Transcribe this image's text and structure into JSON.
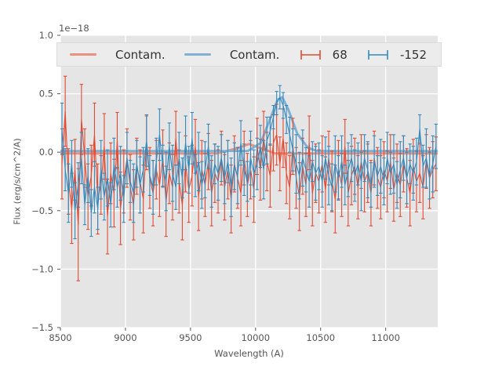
{
  "figure": {
    "offset_text": "1e−18",
    "xlabel": "Wavelength (A)",
    "ylabel": "Flux (erg/s/cm^2/A)"
  },
  "colors": {
    "figure_bg": "#FFFFFF",
    "axes_bg": "#E5E5E5",
    "grid": "#FFFFFF",
    "tick_text": "#555555",
    "legend_text": "#333333",
    "legend_bg": "#ECECEC",
    "red": "#E24A33",
    "blue": "#348ABD",
    "salmon": "#E8917F",
    "light_blue": "#7FB0D2"
  },
  "legend": {
    "items": [
      {
        "type": "line",
        "color_key": "salmon",
        "label": "Contam."
      },
      {
        "type": "line",
        "color_key": "light_blue",
        "label": "Contam."
      },
      {
        "type": "errorbar",
        "color_key": "red",
        "label": "68"
      },
      {
        "type": "errorbar",
        "color_key": "blue",
        "label": "-152"
      }
    ]
  },
  "chart_data": {
    "type": "line",
    "title": "",
    "xlabel": "Wavelength (A)",
    "ylabel": "Flux (erg/s/cm^2/A)",
    "offset_text": "1e−18",
    "xlim": [
      8500,
      11400
    ],
    "ylim": [
      -1.5,
      1.0
    ],
    "grid": true,
    "legend_position": "upper center, horizontal, 4 columns",
    "xticks": {
      "values": [
        8500,
        9000,
        9500,
        10000,
        10500,
        11000
      ],
      "labels": [
        "8500",
        "9000",
        "9500",
        "10000",
        "10500",
        "11000"
      ]
    },
    "yticks": {
      "values": [
        1.0,
        0.5,
        0.0,
        -0.5,
        -1.0,
        -1.5
      ],
      "labels": [
        "1.0",
        "0.5",
        "0.0",
        "−0.5",
        "−1.0",
        "−1.5"
      ]
    },
    "series": [
      {
        "name": "Contam.",
        "style": "thick-line",
        "color_key": "salmon",
        "x": [
          8500,
          9700,
          9850,
          9950,
          10050,
          10150,
          11400
        ],
        "y": [
          -0.01,
          -0.01,
          0.03,
          0.07,
          0.03,
          -0.01,
          -0.01
        ]
      },
      {
        "name": "Contam.",
        "style": "thick-line",
        "color_key": "light_blue",
        "x": [
          8500,
          9940,
          10040,
          10110,
          10170,
          10205,
          10250,
          10320,
          10400,
          10470,
          11400
        ],
        "y": [
          0.01,
          0.01,
          0.08,
          0.28,
          0.45,
          0.47,
          0.37,
          0.16,
          0.04,
          0.01,
          0.01
        ]
      },
      {
        "name": "68",
        "style": "errorbar",
        "color_key": "red",
        "x_start": 8512,
        "x_step": 25,
        "values": [
          -0.1,
          0.35,
          -0.25,
          -0.48,
          -0.15,
          -0.62,
          0.28,
          -0.05,
          -0.38,
          -0.2,
          0.15,
          -0.4,
          -0.28,
          0.05,
          -0.55,
          -0.18,
          -0.35,
          0.1,
          -0.48,
          -0.25,
          -0.05,
          -0.3,
          -0.45,
          -0.12,
          -0.25,
          -0.4,
          0.08,
          -0.22,
          -0.35,
          -0.15,
          -0.28,
          -0.05,
          -0.42,
          -0.18,
          -0.3,
          0.12,
          -0.25,
          -0.45,
          -0.1,
          -0.32,
          -0.2,
          0.05,
          -0.38,
          -0.15,
          -0.28,
          -0.08,
          -0.35,
          -0.18,
          -0.25,
          -0.05,
          -0.3,
          -0.15,
          -0.4,
          -0.1,
          -0.22,
          -0.35,
          -0.05,
          -0.28,
          -0.15,
          -0.32,
          0.05,
          -0.15,
          0.12,
          -0.08,
          -0.2,
          0.08,
          0.15,
          -0.1,
          0.12,
          -0.18,
          -0.3,
          0.05,
          -0.22,
          -0.38,
          -0.12,
          -0.28,
          0.08,
          -0.35,
          -0.18,
          -0.25,
          -0.1,
          -0.32,
          -0.05,
          -0.25,
          -0.4,
          -0.15,
          -0.28,
          0.05,
          -0.35,
          -0.2,
          -0.12,
          -0.3,
          -0.08,
          -0.25,
          -0.18,
          -0.35,
          -0.05,
          -0.22,
          -0.3,
          -0.15,
          -0.25,
          -0.08,
          -0.32,
          -0.18,
          -0.28,
          -0.1,
          -0.22,
          -0.35,
          -0.12,
          -0.25,
          -0.18,
          -0.3,
          -0.08,
          -0.22,
          -0.15,
          -0.1
        ],
        "errors": [
          0.3,
          0.3,
          0.28,
          0.3,
          0.26,
          0.48,
          0.3,
          0.25,
          0.28,
          0.26,
          0.27,
          0.3,
          0.25,
          0.28,
          0.32,
          0.26,
          0.29,
          0.24,
          0.31,
          0.27,
          0.25,
          0.28,
          0.3,
          0.24,
          0.27,
          0.29,
          0.23,
          0.26,
          0.28,
          0.25,
          0.27,
          0.24,
          0.3,
          0.26,
          0.28,
          0.23,
          0.27,
          0.3,
          0.24,
          0.28,
          0.26,
          0.23,
          0.29,
          0.25,
          0.27,
          0.24,
          0.28,
          0.25,
          0.27,
          0.23,
          0.28,
          0.25,
          0.29,
          0.24,
          0.26,
          0.28,
          0.23,
          0.27,
          0.25,
          0.28,
          0.24,
          0.26,
          0.23,
          0.25,
          0.27,
          0.24,
          0.26,
          0.23,
          0.25,
          0.26,
          0.27,
          0.24,
          0.26,
          0.29,
          0.24,
          0.27,
          0.23,
          0.28,
          0.25,
          0.27,
          0.24,
          0.28,
          0.23,
          0.26,
          0.29,
          0.25,
          0.27,
          0.23,
          0.28,
          0.25,
          0.24,
          0.27,
          0.23,
          0.26,
          0.25,
          0.28,
          0.23,
          0.26,
          0.27,
          0.24,
          0.26,
          0.23,
          0.27,
          0.25,
          0.27,
          0.24,
          0.25,
          0.28,
          0.23,
          0.26,
          0.25,
          0.27,
          0.23,
          0.26,
          0.24,
          0.23
        ]
      },
      {
        "name": "-152",
        "style": "errorbar",
        "color_key": "blue",
        "x_start": 8512,
        "x_step": 25,
        "values": [
          0.2,
          -0.15,
          -0.35,
          -0.1,
          -0.5,
          -0.28,
          -0.05,
          -0.45,
          -0.2,
          -0.52,
          -0.3,
          -0.48,
          -0.15,
          -0.38,
          -0.22,
          -0.45,
          -0.1,
          -0.3,
          -0.18,
          -0.4,
          -0.05,
          -0.25,
          -0.35,
          -0.1,
          -0.28,
          -0.15,
          0.1,
          -0.2,
          -0.3,
          -0.08,
          0.15,
          -0.12,
          -0.25,
          0.05,
          -0.18,
          -0.3,
          -0.05,
          -0.22,
          0.08,
          -0.15,
          0.12,
          -0.2,
          -0.08,
          -0.28,
          -0.15,
          0.05,
          -0.25,
          -0.1,
          -0.18,
          -0.05,
          -0.22,
          -0.08,
          -0.3,
          -0.12,
          -0.2,
          0.08,
          -0.15,
          -0.25,
          -0.05,
          -0.18,
          -0.1,
          0.05,
          -0.15,
          0.1,
          0.18,
          0.3,
          0.42,
          0.47,
          0.4,
          0.28,
          0.15,
          0.02,
          -0.1,
          -0.2,
          -0.05,
          -0.15,
          -0.25,
          -0.08,
          -0.18,
          -0.12,
          -0.25,
          -0.05,
          -0.2,
          -0.3,
          -0.1,
          -0.22,
          -0.08,
          -0.28,
          -0.15,
          -0.05,
          -0.2,
          -0.1,
          -0.25,
          -0.05,
          -0.15,
          -0.28,
          -0.08,
          -0.2,
          -0.12,
          -0.25,
          -0.05,
          -0.18,
          -0.1,
          -0.28,
          -0.15,
          -0.05,
          -0.22,
          -0.1,
          -0.18,
          -0.08,
          0.2,
          -0.12,
          -0.05,
          -0.2,
          -0.1,
          0.05
        ],
        "errors": [
          0.22,
          0.18,
          0.25,
          0.2,
          0.24,
          0.19,
          0.22,
          0.17,
          0.23,
          0.2,
          0.22,
          0.18,
          0.25,
          0.2,
          0.24,
          0.19,
          0.22,
          0.17,
          0.23,
          0.2,
          0.22,
          0.18,
          0.25,
          0.2,
          0.24,
          0.19,
          0.22,
          0.17,
          0.23,
          0.2,
          0.22,
          0.18,
          0.25,
          0.2,
          0.24,
          0.19,
          0.22,
          0.17,
          0.23,
          0.2,
          0.22,
          0.18,
          0.25,
          0.2,
          0.24,
          0.19,
          0.22,
          0.17,
          0.23,
          0.2,
          0.22,
          0.18,
          0.25,
          0.2,
          0.24,
          0.19,
          0.22,
          0.17,
          0.23,
          0.2,
          0.22,
          0.18,
          0.25,
          0.2,
          0.12,
          0.1,
          0.1,
          0.1,
          0.11,
          0.12,
          0.15,
          0.18,
          0.25,
          0.2,
          0.24,
          0.19,
          0.22,
          0.17,
          0.23,
          0.2,
          0.22,
          0.18,
          0.25,
          0.2,
          0.24,
          0.19,
          0.22,
          0.17,
          0.23,
          0.2,
          0.22,
          0.18,
          0.25,
          0.2,
          0.24,
          0.19,
          0.22,
          0.17,
          0.23,
          0.2,
          0.22,
          0.18,
          0.25,
          0.2,
          0.24,
          0.19,
          0.22,
          0.17,
          0.23,
          0.2,
          0.12,
          0.18,
          0.25,
          0.2,
          0.24,
          0.19
        ]
      }
    ]
  }
}
